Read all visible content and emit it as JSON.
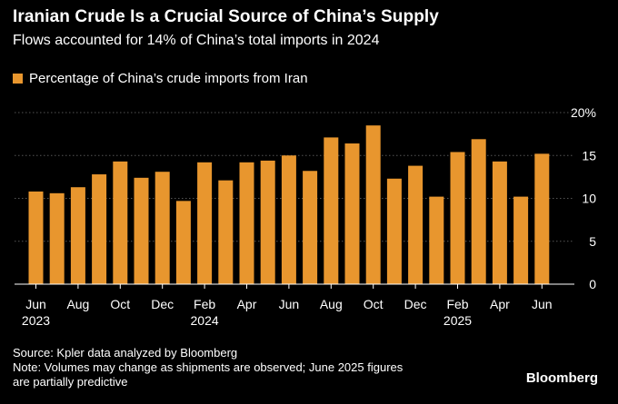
{
  "chart_data": {
    "type": "bar",
    "title": "Iranian Crude Is a Crucial Source of China’s Supply",
    "subtitle": "Flows accounted for 14% of China’s total imports in 2024",
    "legend": "Percentage of China’s crude imports from Iran",
    "categories": [
      "2023-06",
      "2023-07",
      "2023-08",
      "2023-09",
      "2023-10",
      "2023-11",
      "2023-12",
      "2024-01",
      "2024-02",
      "2024-03",
      "2024-04",
      "2024-05",
      "2024-06",
      "2024-07",
      "2024-08",
      "2024-09",
      "2024-10",
      "2024-11",
      "2024-12",
      "2025-01",
      "2025-02",
      "2025-03",
      "2025-04",
      "2025-05",
      "2025-06"
    ],
    "values": [
      10.8,
      10.6,
      11.3,
      12.8,
      14.3,
      12.4,
      13.1,
      9.7,
      14.2,
      12.1,
      14.2,
      14.4,
      15.0,
      13.2,
      17.1,
      16.4,
      18.5,
      12.3,
      13.8,
      10.2,
      15.4,
      16.9,
      14.3,
      10.2,
      15.2
    ],
    "ylim": [
      0,
      20
    ],
    "yticks": [
      {
        "value": 0,
        "label": "0"
      },
      {
        "value": 5,
        "label": "5"
      },
      {
        "value": 10,
        "label": "10"
      },
      {
        "value": 15,
        "label": "15"
      },
      {
        "value": 20,
        "label": "20%"
      }
    ],
    "xticks": [
      {
        "index": 0,
        "label": "Jun",
        "year": "2023"
      },
      {
        "index": 2,
        "label": "Aug",
        "year": ""
      },
      {
        "index": 4,
        "label": "Oct",
        "year": ""
      },
      {
        "index": 6,
        "label": "Dec",
        "year": ""
      },
      {
        "index": 8,
        "label": "Feb",
        "year": "2024"
      },
      {
        "index": 10,
        "label": "Apr",
        "year": ""
      },
      {
        "index": 12,
        "label": "Jun",
        "year": ""
      },
      {
        "index": 14,
        "label": "Aug",
        "year": ""
      },
      {
        "index": 16,
        "label": "Oct",
        "year": ""
      },
      {
        "index": 18,
        "label": "Dec",
        "year": ""
      },
      {
        "index": 20,
        "label": "Feb",
        "year": "2025"
      },
      {
        "index": 22,
        "label": "Apr",
        "year": ""
      },
      {
        "index": 24,
        "label": "Jun",
        "year": ""
      }
    ],
    "grid": true,
    "bar_color": "#E8962E",
    "grid_color": "#555555"
  },
  "footer": {
    "source": "Source: Kpler data analyzed by Bloomberg",
    "note_line1": "Note: Volumes may change as shipments are observed; June 2025 figures",
    "note_line2": "are partially predictive"
  },
  "brand": "Bloomberg"
}
